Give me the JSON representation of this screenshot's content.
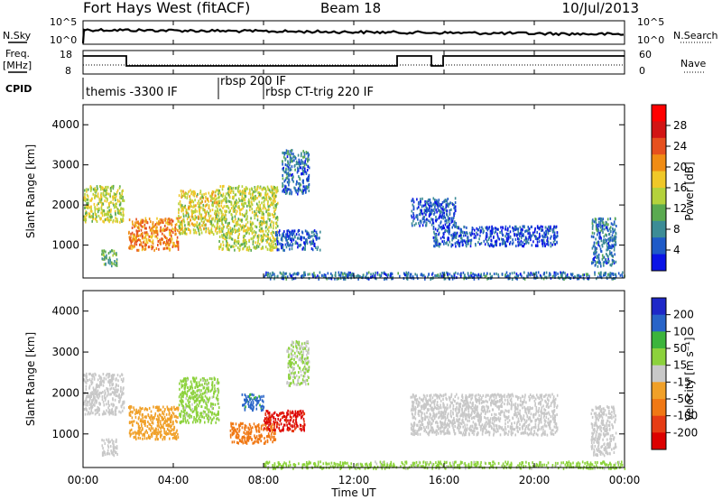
{
  "header": {
    "title": "Fort Hays West (fitACF)",
    "beam": "Beam 18",
    "date": "10/Jul/2013"
  },
  "noise_panel": {
    "left_label": "N.Sky",
    "right_label": "N.Search",
    "ticks": [
      "10^5",
      "10^0"
    ]
  },
  "freq_panel": {
    "left_label_1": "Freq.",
    "left_label_2": "[MHz]",
    "right_label": "Nave",
    "left_ticks": [
      "18",
      "8"
    ],
    "right_ticks": [
      "60",
      "0"
    ]
  },
  "cpid_panel": {
    "label": "CPID",
    "modes": [
      {
        "name": "themis -3300 IF",
        "start_hour": 0.0
      },
      {
        "name": "rbsp 200 IF",
        "start_hour": 6.0
      },
      {
        "name": "rbsp CT-trig 220 IF",
        "start_hour": 8.0
      }
    ]
  },
  "colors": {
    "power_scale": [
      "#0a14e6",
      "#1e5ac8",
      "#3c8c96",
      "#5aaa50",
      "#b4d23c",
      "#f0c828",
      "#f08c14",
      "#e6501e",
      "#d21414",
      "#ff0000"
    ],
    "velocity_scale": [
      "#1e28c8",
      "#2864c8",
      "#3cb43c",
      "#8cd23c",
      "#c8c8c8",
      "#f0a028",
      "#f07814",
      "#e63c14",
      "#dc0000"
    ]
  },
  "chart_data": [
    {
      "type": "heatmap",
      "name": "power",
      "ylabel": "Slant Range [km]",
      "xlabel": "",
      "x_range_hours": [
        0,
        24
      ],
      "ylim": [
        180,
        4500
      ],
      "x_ticks": [
        "00:00",
        "04:00",
        "08:00",
        "12:00",
        "16:00",
        "20:00",
        "00:00"
      ],
      "y_ticks": [
        1000,
        2000,
        3000,
        4000
      ],
      "colorbar": {
        "label": "Power [dB]",
        "ticks": [
          "4",
          "8",
          "12",
          "16",
          "20",
          "24",
          "28"
        ],
        "range": [
          0,
          30
        ]
      },
      "echo_regions": [
        {
          "t0": 0.0,
          "t1": 1.8,
          "r0": 1600,
          "r1": 2500,
          "level": 14
        },
        {
          "t0": 0.8,
          "t1": 1.5,
          "r0": 500,
          "r1": 900,
          "level": 10
        },
        {
          "t0": 2.0,
          "t1": 4.2,
          "r0": 900,
          "r1": 1700,
          "level": 20
        },
        {
          "t0": 4.2,
          "t1": 6.0,
          "r0": 1300,
          "r1": 2400,
          "level": 15
        },
        {
          "t0": 6.0,
          "t1": 8.6,
          "r0": 900,
          "r1": 2500,
          "level": 14
        },
        {
          "t0": 8.8,
          "t1": 10.0,
          "r0": 2300,
          "r1": 3400,
          "level": 6
        },
        {
          "t0": 8.5,
          "t1": 10.5,
          "r0": 900,
          "r1": 1400,
          "level": 5
        },
        {
          "t0": 14.5,
          "t1": 16.5,
          "r0": 1500,
          "r1": 2200,
          "level": 4
        },
        {
          "t0": 15.5,
          "t1": 21.0,
          "r0": 1000,
          "r1": 1500,
          "level": 4
        },
        {
          "t0": 22.5,
          "t1": 23.6,
          "r0": 500,
          "r1": 1700,
          "level": 6
        },
        {
          "t0": 8.0,
          "t1": 24.0,
          "r0": 180,
          "r1": 350,
          "level": 6
        }
      ]
    },
    {
      "type": "heatmap",
      "name": "velocity",
      "ylabel": "Slant Range [km]",
      "xlabel": "Time UT",
      "x_range_hours": [
        0,
        24
      ],
      "ylim": [
        180,
        4500
      ],
      "x_ticks": [
        "00:00",
        "04:00",
        "08:00",
        "12:00",
        "16:00",
        "20:00",
        "00:00"
      ],
      "y_ticks": [
        1000,
        2000,
        3000,
        4000
      ],
      "colorbar": {
        "label": "Velocity [m s⁻¹]",
        "ticks": [
          "200",
          "100",
          "50",
          "15",
          "-15",
          "-50",
          "-100",
          "-200"
        ],
        "range": [
          -250,
          250
        ]
      },
      "echo_regions": [
        {
          "t0": 0.0,
          "t1": 1.8,
          "r0": 1500,
          "r1": 2500,
          "vel": 0
        },
        {
          "t0": 0.8,
          "t1": 1.5,
          "r0": 500,
          "r1": 900,
          "vel": 0
        },
        {
          "t0": 2.0,
          "t1": 4.2,
          "r0": 900,
          "r1": 1700,
          "vel": -60
        },
        {
          "t0": 4.2,
          "t1": 6.0,
          "r0": 1300,
          "r1": 2400,
          "vel": 40
        },
        {
          "t0": 6.5,
          "t1": 8.5,
          "r0": 800,
          "r1": 1300,
          "vel": -110
        },
        {
          "t0": 7.0,
          "t1": 8.0,
          "r0": 1600,
          "r1": 2000,
          "vel": 150
        },
        {
          "t0": 8.0,
          "t1": 9.8,
          "r0": 1100,
          "r1": 1600,
          "vel": -200
        },
        {
          "t0": 9.0,
          "t1": 10.0,
          "r0": 2200,
          "r1": 3300,
          "vel": 30
        },
        {
          "t0": 14.5,
          "t1": 21.0,
          "r0": 1000,
          "r1": 2000,
          "vel": 0
        },
        {
          "t0": 22.5,
          "t1": 23.6,
          "r0": 500,
          "r1": 1700,
          "vel": 0
        },
        {
          "t0": 8.0,
          "t1": 24.0,
          "r0": 180,
          "r1": 350,
          "vel": 40
        }
      ]
    }
  ]
}
